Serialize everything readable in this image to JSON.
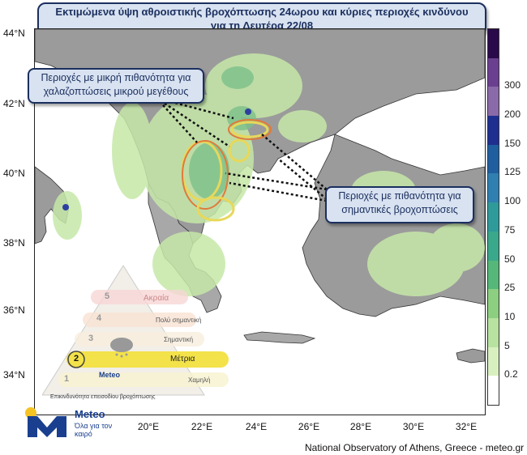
{
  "title": {
    "line1": "Εκτιμώμενα ύψη αθροιστικής βροχόπτωσης 24ωρου και κύριες περιοχές κινδύνου",
    "line2": "για τη Δευτέρα 22/08"
  },
  "callouts": {
    "hail": {
      "line1": "Περιοχές με μικρή πιθανότητα για",
      "line2": "χαλαζοπτώσεις μικρού μεγέθους"
    },
    "rain": {
      "line1": "Περιοχές με πιθανότητα για",
      "line2": "σημαντικές βροχοπτώσεις"
    }
  },
  "lat_labels": [
    "44°N",
    "42°N",
    "40°N",
    "38°N",
    "36°N",
    "34°N"
  ],
  "lon_labels": [
    "20°E",
    "22°E",
    "24°E",
    "26°E",
    "28°E",
    "30°E",
    "32°E"
  ],
  "colorbar": {
    "levels": [
      "300",
      "200",
      "150",
      "125",
      "100",
      "75",
      "50",
      "25",
      "10",
      "5",
      "0.2"
    ],
    "colors": [
      "#2a0a4a",
      "#6b3f8f",
      "#8a6aa8",
      "#1f2f8f",
      "#1f5fa0",
      "#2f7fb0",
      "#2f9a9a",
      "#3aa88a",
      "#55b87a",
      "#8ccf80",
      "#b8e2a0",
      "#d8f0c0",
      "#ffffff"
    ]
  },
  "risk_pyramid": {
    "levels": [
      {
        "num": "5",
        "label": "Ακραία"
      },
      {
        "num": "4",
        "label": "Πολύ σημαντική"
      },
      {
        "num": "3",
        "label": "Σημαντική"
      },
      {
        "num": "2",
        "label": "Μέτρια"
      },
      {
        "num": "1",
        "label": "Χαμηλή"
      }
    ],
    "active_level": "2",
    "footer": "Επικινδυνότητα επεισοδίου βροχόπτωσης",
    "brand": "Meteo"
  },
  "logo": {
    "brand": "Meteo",
    "tagline": "Όλα για τον καιρό"
  },
  "credit": "National Observatory of Athens, Greece - meteo.gr"
}
